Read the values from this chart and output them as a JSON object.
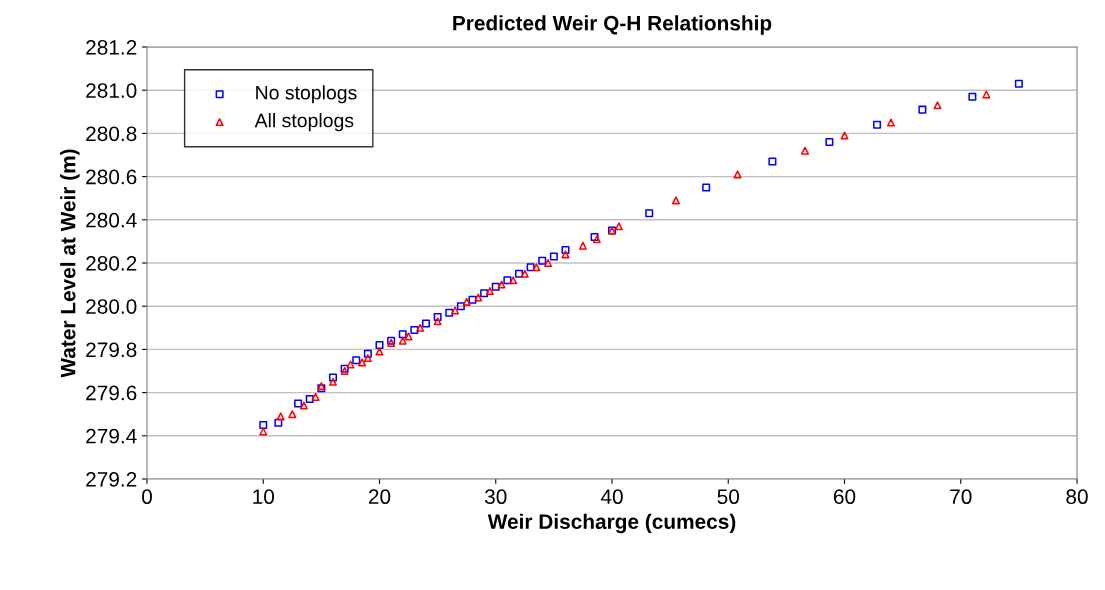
{
  "chart_data": {
    "type": "scatter",
    "title": "Predicted Weir Q-H Relationship",
    "xlabel": "Weir Discharge (cumecs)",
    "ylabel": "Water Level at Weir (m)",
    "xlim": [
      0,
      80
    ],
    "xticks": [
      0,
      10,
      20,
      30,
      40,
      50,
      60,
      70,
      80
    ],
    "ylim": [
      279.2,
      281.2
    ],
    "yticks": [
      {
        "value": 279.2,
        "label": "279.2"
      },
      {
        "value": 279.4,
        "label": "279.4"
      },
      {
        "value": 279.6,
        "label": "279.6"
      },
      {
        "value": 279.8,
        "label": "279.8"
      },
      {
        "value": 280.0,
        "label": "280.0"
      },
      {
        "value": 280.2,
        "label": "280.2"
      },
      {
        "value": 280.4,
        "label": "280.4"
      },
      {
        "value": 280.6,
        "label": "280.6"
      },
      {
        "value": 280.8,
        "label": "280.8"
      },
      {
        "value": 281.0,
        "label": "281.0"
      },
      {
        "value": 281.2,
        "label": "281.2"
      }
    ],
    "grid": "y",
    "legend": "top left",
    "series": [
      {
        "name": "No stoplogs",
        "color": "#0000ff",
        "marker": "square",
        "x": [
          10,
          11.3,
          13,
          14,
          15,
          16,
          17,
          18,
          19,
          20,
          21,
          22,
          23,
          24,
          25,
          26,
          27,
          28,
          29,
          30,
          31,
          32,
          33,
          34,
          35,
          36,
          38.5,
          40,
          43.2,
          48.1,
          53.8,
          58.7,
          62.8,
          66.7,
          71,
          75
        ],
        "values": [
          279.45,
          279.46,
          279.55,
          279.57,
          279.62,
          279.67,
          279.71,
          279.75,
          279.78,
          279.82,
          279.84,
          279.87,
          279.89,
          279.92,
          279.95,
          279.97,
          280.0,
          280.03,
          280.06,
          280.09,
          280.12,
          280.15,
          280.18,
          280.21,
          280.23,
          280.26,
          280.32,
          280.35,
          280.43,
          280.55,
          280.67,
          280.76,
          280.84,
          280.91,
          280.97,
          281.03
        ]
      },
      {
        "name": "All stoplogs",
        "color": "#ff0000",
        "marker": "triangle",
        "x": [
          10,
          11.5,
          12.5,
          13.5,
          14.5,
          15,
          16,
          17,
          17.5,
          18.5,
          19,
          20,
          21,
          22,
          22.5,
          23.5,
          25,
          26.5,
          27.5,
          28.5,
          29.5,
          30.5,
          31.5,
          32.5,
          33.5,
          34.5,
          36,
          37.5,
          38.7,
          40,
          40.6,
          45.5,
          50.8,
          56.6,
          60,
          64,
          68,
          72.2
        ],
        "values": [
          279.42,
          279.49,
          279.5,
          279.54,
          279.58,
          279.63,
          279.65,
          279.7,
          279.73,
          279.74,
          279.76,
          279.79,
          279.83,
          279.84,
          279.86,
          279.9,
          279.93,
          279.98,
          280.02,
          280.04,
          280.07,
          280.1,
          280.12,
          280.15,
          280.18,
          280.2,
          280.24,
          280.28,
          280.31,
          280.35,
          280.37,
          280.49,
          280.61,
          280.72,
          280.79,
          280.85,
          280.93,
          280.98
        ]
      }
    ]
  }
}
